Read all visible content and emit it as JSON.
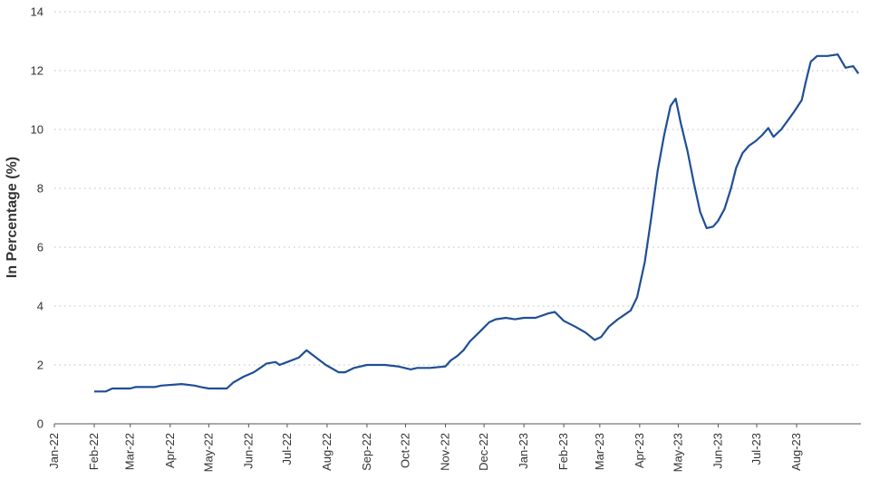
{
  "chart_data": {
    "type": "line",
    "title": "",
    "xlabel": "",
    "ylabel": "In Percentage (%)",
    "ylim": [
      0,
      14
    ],
    "yticks": [
      0,
      2,
      4,
      6,
      8,
      10,
      12,
      14
    ],
    "grid": "horizontal dotted",
    "x_tick_labels": [
      "Jan-22",
      "Feb-22",
      "Mar-22",
      "Apr-22",
      "May-22",
      "Jun-22",
      "Jul-22",
      "Aug-22",
      "Sep-22",
      "Oct-22",
      "Nov-22",
      "Dec-22",
      "Jan-23",
      "Feb-23",
      "Mar-23",
      "Apr-23",
      "May-23",
      "Jun-23",
      "Jul-23",
      "Aug-23"
    ],
    "xlim": [
      "2022-01-01",
      "2023-09-20"
    ],
    "colors": {
      "line": "#1f4e96",
      "text": "#333333"
    },
    "series": [
      {
        "name": "",
        "points": [
          [
            "2022-02-01",
            1.1
          ],
          [
            "2022-02-10",
            1.1
          ],
          [
            "2022-02-15",
            1.2
          ],
          [
            "2022-03-01",
            1.2
          ],
          [
            "2022-03-05",
            1.25
          ],
          [
            "2022-03-20",
            1.25
          ],
          [
            "2022-03-25",
            1.3
          ],
          [
            "2022-04-10",
            1.35
          ],
          [
            "2022-04-20",
            1.3
          ],
          [
            "2022-04-25",
            1.25
          ],
          [
            "2022-05-01",
            1.2
          ],
          [
            "2022-05-15",
            1.2
          ],
          [
            "2022-05-20",
            1.4
          ],
          [
            "2022-05-28",
            1.6
          ],
          [
            "2022-06-05",
            1.75
          ],
          [
            "2022-06-10",
            1.9
          ],
          [
            "2022-06-15",
            2.05
          ],
          [
            "2022-06-22",
            2.1
          ],
          [
            "2022-06-25",
            2.0
          ],
          [
            "2022-07-01",
            2.1
          ],
          [
            "2022-07-10",
            2.25
          ],
          [
            "2022-07-16",
            2.5
          ],
          [
            "2022-07-22",
            2.3
          ],
          [
            "2022-07-31",
            2.0
          ],
          [
            "2022-08-10",
            1.75
          ],
          [
            "2022-08-15",
            1.75
          ],
          [
            "2022-08-22",
            1.9
          ],
          [
            "2022-09-01",
            2.0
          ],
          [
            "2022-09-15",
            2.0
          ],
          [
            "2022-09-25",
            1.95
          ],
          [
            "2022-10-05",
            1.85
          ],
          [
            "2022-10-10",
            1.9
          ],
          [
            "2022-10-20",
            1.9
          ],
          [
            "2022-11-01",
            1.95
          ],
          [
            "2022-11-05",
            2.15
          ],
          [
            "2022-11-10",
            2.3
          ],
          [
            "2022-11-15",
            2.5
          ],
          [
            "2022-11-20",
            2.8
          ],
          [
            "2022-11-27",
            3.1
          ],
          [
            "2022-12-05",
            3.45
          ],
          [
            "2022-12-10",
            3.55
          ],
          [
            "2022-12-18",
            3.6
          ],
          [
            "2022-12-25",
            3.55
          ],
          [
            "2023-01-01",
            3.6
          ],
          [
            "2023-01-10",
            3.6
          ],
          [
            "2023-01-20",
            3.75
          ],
          [
            "2023-01-25",
            3.8
          ],
          [
            "2023-02-01",
            3.5
          ],
          [
            "2023-02-10",
            3.3
          ],
          [
            "2023-02-18",
            3.1
          ],
          [
            "2023-02-25",
            2.85
          ],
          [
            "2023-03-02",
            2.95
          ],
          [
            "2023-03-08",
            3.3
          ],
          [
            "2023-03-15",
            3.55
          ],
          [
            "2023-03-20",
            3.7
          ],
          [
            "2023-03-25",
            3.85
          ],
          [
            "2023-03-30",
            4.3
          ],
          [
            "2023-04-05",
            5.5
          ],
          [
            "2023-04-10",
            7.0
          ],
          [
            "2023-04-15",
            8.6
          ],
          [
            "2023-04-20",
            9.8
          ],
          [
            "2023-04-25",
            10.8
          ],
          [
            "2023-04-29",
            11.05
          ],
          [
            "2023-05-03",
            10.2
          ],
          [
            "2023-05-08",
            9.3
          ],
          [
            "2023-05-13",
            8.2
          ],
          [
            "2023-05-18",
            7.2
          ],
          [
            "2023-05-23",
            6.65
          ],
          [
            "2023-05-28",
            6.7
          ],
          [
            "2023-06-01",
            6.9
          ],
          [
            "2023-06-06",
            7.3
          ],
          [
            "2023-06-11",
            8.0
          ],
          [
            "2023-06-15",
            8.7
          ],
          [
            "2023-06-20",
            9.2
          ],
          [
            "2023-06-25",
            9.45
          ],
          [
            "2023-06-30",
            9.6
          ],
          [
            "2023-07-05",
            9.8
          ],
          [
            "2023-07-10",
            10.05
          ],
          [
            "2023-07-14",
            9.75
          ],
          [
            "2023-07-20",
            10.0
          ],
          [
            "2023-07-25",
            10.3
          ],
          [
            "2023-07-30",
            10.6
          ],
          [
            "2023-08-05",
            11.0
          ],
          [
            "2023-08-08",
            11.6
          ],
          [
            "2023-08-12",
            12.3
          ],
          [
            "2023-08-17",
            12.5
          ],
          [
            "2023-08-25",
            12.5
          ],
          [
            "2023-09-02",
            12.55
          ],
          [
            "2023-09-08",
            12.1
          ],
          [
            "2023-09-14",
            12.15
          ],
          [
            "2023-09-18",
            11.9
          ]
        ]
      }
    ]
  }
}
